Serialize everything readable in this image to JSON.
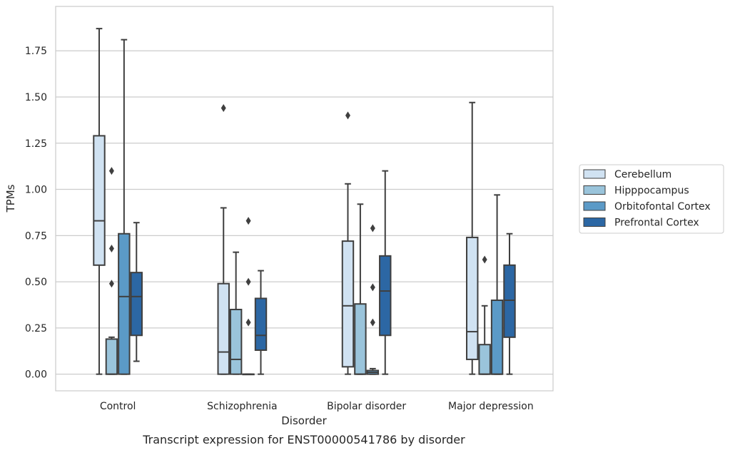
{
  "chart_data": {
    "type": "boxplot",
    "title": "",
    "caption": "Transcript expression for ENST00000541786 by disorder",
    "xlabel": "Disorder",
    "ylabel": "TPMs",
    "ylim": [
      -0.09,
      1.99
    ],
    "yticks": [
      "0.00",
      "0.25",
      "0.50",
      "0.75",
      "1.00",
      "1.25",
      "1.50",
      "1.75"
    ],
    "ytick_values": [
      0,
      0.25,
      0.5,
      0.75,
      1.0,
      1.25,
      1.5,
      1.75
    ],
    "grid": "horizontal",
    "legend_position": "right-center",
    "categories": [
      "Control",
      "Schizophrenia",
      "Bipolar disorder",
      "Major depression"
    ],
    "series": [
      {
        "name": "Cerebellum",
        "color": "#d0e2f2",
        "boxes": [
          {
            "whislo": 0.0,
            "q1": 0.59,
            "med": 0.83,
            "q3": 1.29,
            "whishi": 1.87,
            "fliers": []
          },
          {
            "whislo": 0.0,
            "q1": 0.0,
            "med": 0.12,
            "q3": 0.49,
            "whishi": 0.9,
            "fliers": [
              1.44
            ]
          },
          {
            "whislo": 0.0,
            "q1": 0.04,
            "med": 0.37,
            "q3": 0.72,
            "whishi": 1.03,
            "fliers": [
              1.4
            ]
          },
          {
            "whislo": 0.0,
            "q1": 0.08,
            "med": 0.23,
            "q3": 0.74,
            "whishi": 1.47,
            "fliers": []
          }
        ]
      },
      {
        "name": "Hipppocampus",
        "color": "#9ac4db",
        "boxes": [
          {
            "whislo": 0.0,
            "q1": 0.0,
            "med": 0.0,
            "q3": 0.19,
            "whishi": 0.2,
            "fliers": [
              0.49,
              0.68,
              1.1
            ]
          },
          {
            "whislo": 0.0,
            "q1": 0.0,
            "med": 0.08,
            "q3": 0.35,
            "whishi": 0.66,
            "fliers": []
          },
          {
            "whislo": 0.0,
            "q1": 0.0,
            "med": 0.0,
            "q3": 0.38,
            "whishi": 0.92,
            "fliers": []
          },
          {
            "whislo": 0.0,
            "q1": 0.0,
            "med": 0.0,
            "q3": 0.16,
            "whishi": 0.37,
            "fliers": [
              0.62
            ]
          }
        ]
      },
      {
        "name": "Orbitofontal Cortex",
        "color": "#5b9ac7",
        "boxes": [
          {
            "whislo": 0.0,
            "q1": 0.0,
            "med": 0.42,
            "q3": 0.76,
            "whishi": 1.81,
            "fliers": []
          },
          {
            "whislo": 0.0,
            "q1": 0.0,
            "med": 0.0,
            "q3": 0.0,
            "whishi": 0.0,
            "fliers": [
              0.28,
              0.5,
              0.83
            ]
          },
          {
            "whislo": 0.0,
            "q1": 0.0,
            "med": 0.01,
            "q3": 0.02,
            "whishi": 0.03,
            "fliers": [
              0.28,
              0.47,
              0.79
            ]
          },
          {
            "whislo": 0.0,
            "q1": 0.0,
            "med": 0.0,
            "q3": 0.4,
            "whishi": 0.97,
            "fliers": []
          }
        ]
      },
      {
        "name": "Prefrontal Cortex",
        "color": "#2c67a4",
        "boxes": [
          {
            "whislo": 0.07,
            "q1": 0.21,
            "med": 0.42,
            "q3": 0.55,
            "whishi": 0.82,
            "fliers": []
          },
          {
            "whislo": 0.0,
            "q1": 0.13,
            "med": 0.21,
            "q3": 0.41,
            "whishi": 0.56,
            "fliers": []
          },
          {
            "whislo": 0.0,
            "q1": 0.21,
            "med": 0.45,
            "q3": 0.64,
            "whishi": 1.1,
            "fliers": []
          },
          {
            "whislo": 0.0,
            "q1": 0.2,
            "med": 0.4,
            "q3": 0.59,
            "whishi": 0.76,
            "fliers": []
          }
        ]
      }
    ]
  }
}
